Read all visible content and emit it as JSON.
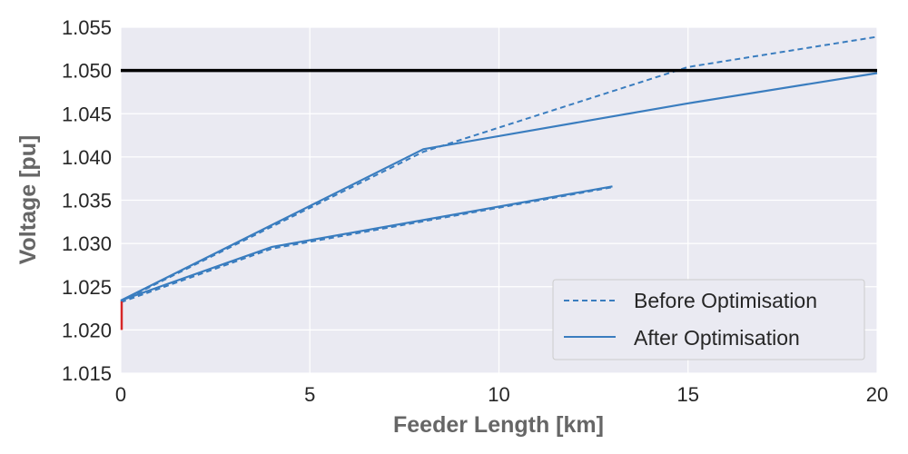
{
  "chart_data": {
    "type": "line",
    "title": "",
    "xlabel": "Feeder Length [km]",
    "ylabel": "Voltage [pu]",
    "xlim": [
      0,
      20
    ],
    "ylim": [
      1.015,
      1.055
    ],
    "xticks": [
      0,
      5,
      10,
      15,
      20
    ],
    "yticks": [
      1.015,
      1.02,
      1.025,
      1.03,
      1.035,
      1.04,
      1.045,
      1.05,
      1.055
    ],
    "xtick_labels": [
      "0",
      "5",
      "10",
      "15",
      "20"
    ],
    "ytick_labels": [
      "1.015",
      "1.020",
      "1.025",
      "1.030",
      "1.035",
      "1.040",
      "1.045",
      "1.050",
      "1.055"
    ],
    "grid": true,
    "legend_position": "lower-right",
    "limit_line": {
      "y": 1.05,
      "color": "#000000"
    },
    "source_marker": {
      "x": 0,
      "y_from": 1.02,
      "y_to": 1.0233,
      "color": "#d62728"
    },
    "series": [
      {
        "name": "Before Optimisation",
        "style": "dashed",
        "color": "#3a7dbf",
        "legend": true,
        "x": [
          0,
          8,
          15,
          20
        ],
        "y": [
          1.0233,
          1.0406,
          1.0504,
          1.0539
        ]
      },
      {
        "name": "Before Optimisation",
        "style": "dashed",
        "color": "#3a7dbf",
        "legend": false,
        "x": [
          0,
          4,
          13
        ],
        "y": [
          1.0232,
          1.0294,
          1.0365
        ]
      },
      {
        "name": "After Optimisation",
        "style": "solid",
        "color": "#3a7dbf",
        "legend": true,
        "x": [
          0,
          8,
          15,
          20
        ],
        "y": [
          1.0234,
          1.0409,
          1.0462,
          1.0497
        ]
      },
      {
        "name": "After Optimisation",
        "style": "solid",
        "color": "#3a7dbf",
        "legend": false,
        "x": [
          0,
          4,
          13
        ],
        "y": [
          1.0234,
          1.0296,
          1.0366
        ]
      }
    ],
    "legend_entries": [
      {
        "label": "Before Optimisation",
        "style": "dashed"
      },
      {
        "label": "After Optimisation",
        "style": "solid"
      }
    ]
  }
}
